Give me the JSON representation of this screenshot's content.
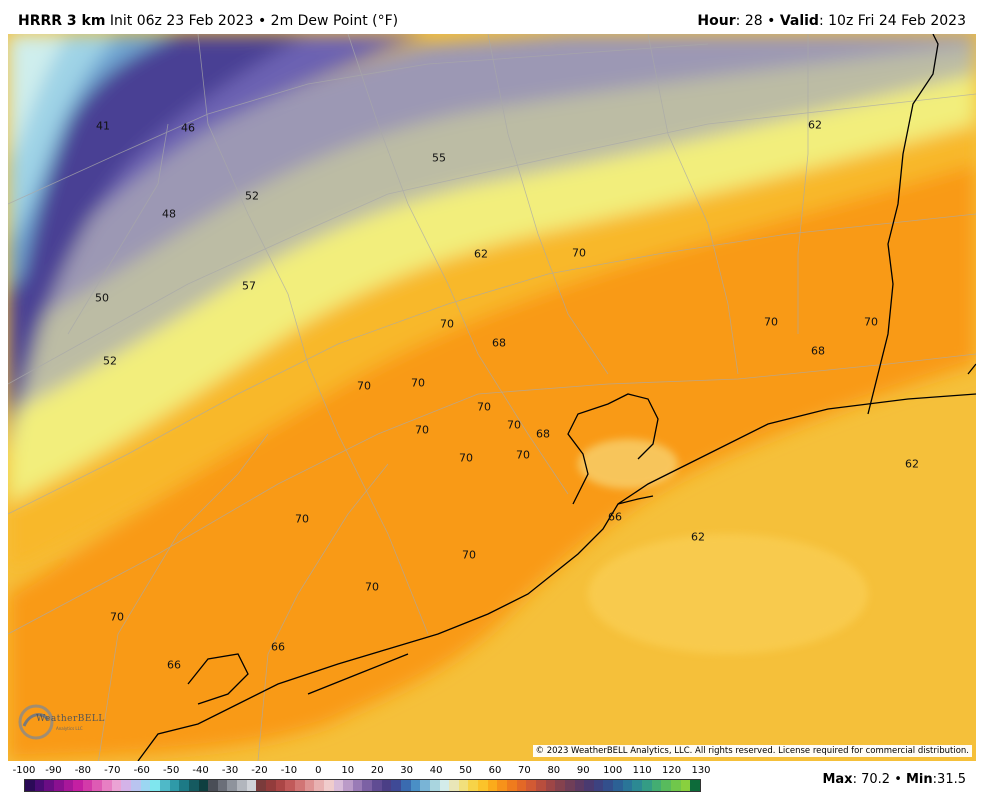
{
  "header": {
    "model": "HRRR 3 km",
    "init": "Init 06z 23 Feb 2023",
    "sep": "•",
    "field": "2m Dew Point (°F)",
    "hour_label": "Hour",
    "hour_value": "28",
    "valid_label": "Valid",
    "valid_value": "10z Fri 24 Feb 2023"
  },
  "map": {
    "values": [
      "41",
      "46",
      "52",
      "48",
      "50",
      "52",
      "57",
      "55",
      "62",
      "62",
      "70",
      "70",
      "68",
      "70",
      "70",
      "70",
      "70",
      "68",
      "70",
      "70",
      "70",
      "70",
      "68",
      "70",
      "62",
      "66",
      "62",
      "70",
      "70",
      "70",
      "70",
      "66",
      "66"
    ],
    "copyright": "© 2023 WeatherBELL Analytics, LLC. All rights reserved. License required for commercial distribution.",
    "logo": "WeatherBELL",
    "logo_sub": "Analytics LLC"
  },
  "colorbar": {
    "ticks": [
      "-100",
      "-90",
      "-80",
      "-70",
      "-60",
      "-50",
      "-40",
      "-30",
      "-20",
      "-10",
      "0",
      "10",
      "20",
      "30",
      "40",
      "50",
      "60",
      "70",
      "80",
      "90",
      "100",
      "110",
      "120",
      "130"
    ],
    "colors": [
      "#2b0a57",
      "#4a0b74",
      "#6a0d84",
      "#8a1090",
      "#a8179a",
      "#c41fa2",
      "#d33aa9",
      "#de5bb4",
      "#e77fc3",
      "#eba3d4",
      "#d4b3e8",
      "#b9c4f0",
      "#9bd6f2",
      "#7fe6ee",
      "#4fb9c8",
      "#2f9aa8",
      "#1d7a86",
      "#155a60",
      "#0f3f40",
      "#4a4e57",
      "#6b6f79",
      "#8e939c",
      "#b2b6bd",
      "#d0d3d8",
      "#7a3b3b",
      "#933c3c",
      "#ab4646",
      "#c15a5a",
      "#d17575",
      "#de9393",
      "#e8b1b1",
      "#f0cccc",
      "#d9bcd9",
      "#bb9bc8",
      "#9a7bb6",
      "#7c61a4",
      "#604c93",
      "#4b3f86",
      "#3f4a96",
      "#3a6bb0",
      "#4a8fc6",
      "#79b4d6",
      "#a9d5df",
      "#d3ecea",
      "#e9e6b8",
      "#f1e07c",
      "#f7d348",
      "#fbc32a",
      "#fbab1b",
      "#f7921a",
      "#ef7b1d",
      "#e36826",
      "#d25a33",
      "#b94e3d",
      "#9e4646",
      "#85424e",
      "#6f3e58",
      "#5c3a63",
      "#4a3a70",
      "#3d4280",
      "#334f8c",
      "#2c6195",
      "#2a7598",
      "#2c8993",
      "#349c85",
      "#43ad72",
      "#58bb5d",
      "#70c74b",
      "#89d03e",
      "#0d6b3a"
    ],
    "max_label": "Max",
    "max_value": "70.2",
    "min_label": "Min",
    "min_value": "31.5"
  }
}
